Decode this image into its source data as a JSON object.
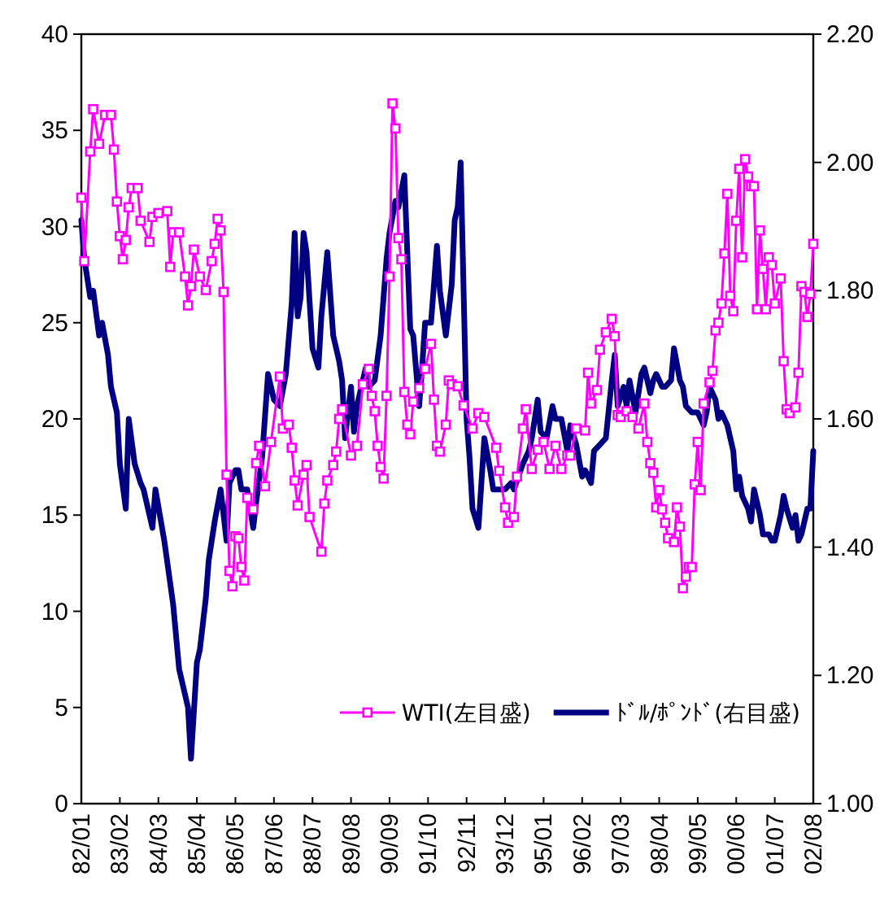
{
  "chart_data": {
    "type": "line",
    "xlim": [
      "1982-01",
      "2002-08"
    ],
    "xticks": [
      {
        "value": "1982-01",
        "label": "82/01"
      },
      {
        "value": "1983-02",
        "label": "83/02"
      },
      {
        "value": "1984-03",
        "label": "84/03"
      },
      {
        "value": "1985-04",
        "label": "85/04"
      },
      {
        "value": "1986-05",
        "label": "86/05"
      },
      {
        "value": "1987-06",
        "label": "87/06"
      },
      {
        "value": "1988-07",
        "label": "88/07"
      },
      {
        "value": "1989-08",
        "label": "89/08"
      },
      {
        "value": "1990-09",
        "label": "90/09"
      },
      {
        "value": "1991-10",
        "label": "91/10"
      },
      {
        "value": "1992-11",
        "label": "92/11"
      },
      {
        "value": "1993-12",
        "label": "93/12"
      },
      {
        "value": "1995-01",
        "label": "95/01"
      },
      {
        "value": "1996-02",
        "label": "96/02"
      },
      {
        "value": "1997-03",
        "label": "97/03"
      },
      {
        "value": "1998-04",
        "label": "98/04"
      },
      {
        "value": "1999-05",
        "label": "99/05"
      },
      {
        "value": "2000-06",
        "label": "00/06"
      },
      {
        "value": "2001-07",
        "label": "01/07"
      },
      {
        "value": "2002-08",
        "label": "02/08"
      }
    ],
    "ylim": [
      0,
      40
    ],
    "yticks": [
      0,
      5,
      10,
      15,
      20,
      25,
      30,
      35,
      40
    ],
    "y2lim": [
      1,
      2.2
    ],
    "y2ticks": [
      {
        "value": 1,
        "label": "1.00"
      },
      {
        "value": 1.2,
        "label": "1.20"
      },
      {
        "value": 1.4,
        "label": "1.40"
      },
      {
        "value": 1.6,
        "label": "1.60"
      },
      {
        "value": 1.8,
        "label": "1.80"
      },
      {
        "value": 2,
        "label": "2.00"
      },
      {
        "value": 2.2,
        "label": "2.20"
      }
    ],
    "legend": "bottom right",
    "series": [
      {
        "name": "WTI(左目盛)",
        "color": "#ff00ff",
        "marker": "square",
        "x": [
          "1982-01",
          "1982-02",
          "1982-04",
          "1982-05",
          "1982-07",
          "1982-09",
          "1982-11",
          "1982-12",
          "1983-01",
          "1983-02",
          "1983-03",
          "1983-04",
          "1983-05",
          "1983-06",
          "1983-08",
          "1983-09",
          "1983-12",
          "1984-01",
          "1984-03",
          "1984-06",
          "1984-07",
          "1984-08",
          "1984-10",
          "1984-12",
          "1985-01",
          "1985-02",
          "1985-03",
          "1985-05",
          "1985-07",
          "1985-09",
          "1985-10",
          "1985-11",
          "1985-12",
          "1986-01",
          "1986-02",
          "1986-03",
          "1986-04",
          "1986-05",
          "1986-06",
          "1986-07",
          "1986-08",
          "1986-09",
          "1986-11",
          "1986-12",
          "1987-01",
          "1987-03",
          "1987-05",
          "1987-08",
          "1987-09",
          "1987-11",
          "1987-12",
          "1988-01",
          "1988-02",
          "1988-04",
          "1988-05",
          "1988-06",
          "1988-10",
          "1988-11",
          "1988-12",
          "1989-02",
          "1989-03",
          "1989-04",
          "1989-05",
          "1989-08",
          "1989-10",
          "1989-12",
          "1990-02",
          "1990-03",
          "1990-04",
          "1990-05",
          "1990-06",
          "1990-07",
          "1990-08",
          "1990-09",
          "1990-10",
          "1990-11",
          "1990-12",
          "1991-01",
          "1991-02",
          "1991-03",
          "1991-04",
          "1991-05",
          "1991-07",
          "1991-09",
          "1991-11",
          "1991-12",
          "1992-01",
          "1992-02",
          "1992-04",
          "1992-05",
          "1992-06",
          "1992-08",
          "1992-10",
          "1993-01",
          "1993-03",
          "1993-05",
          "1993-09",
          "1993-10",
          "1993-12",
          "1994-01",
          "1994-03",
          "1994-04",
          "1994-06",
          "1994-07",
          "1994-09",
          "1994-11",
          "1995-01",
          "1995-03",
          "1995-05",
          "1995-07",
          "1995-09",
          "1995-10",
          "1995-12",
          "1996-03",
          "1996-04",
          "1996-05",
          "1996-07",
          "1996-08",
          "1996-10",
          "1996-12",
          "1997-01",
          "1997-02",
          "1997-03",
          "1997-05",
          "1997-07",
          "1997-09",
          "1997-11",
          "1997-12",
          "1998-01",
          "1998-02",
          "1998-03",
          "1998-04",
          "1998-05",
          "1998-06",
          "1998-07",
          "1998-09",
          "1998-10",
          "1998-11",
          "1998-12",
          "1999-01",
          "1999-02",
          "1999-03",
          "1999-04",
          "1999-05",
          "1999-06",
          "1999-07",
          "1999-09",
          "1999-10",
          "1999-11",
          "1999-12",
          "2000-01",
          "2000-02",
          "2000-03",
          "2000-04",
          "2000-05",
          "2000-06",
          "2000-07",
          "2000-08",
          "2000-09",
          "2000-10",
          "2000-11",
          "2000-12",
          "2001-01",
          "2001-02",
          "2001-03",
          "2001-04",
          "2001-05",
          "2001-06",
          "2001-07",
          "2001-09",
          "2001-10",
          "2001-11",
          "2001-12",
          "2002-02",
          "2002-03",
          "2002-04",
          "2002-05",
          "2002-06",
          "2002-07",
          "2002-08"
        ],
        "values": [
          31.5,
          28.2,
          33.9,
          36.1,
          34.3,
          35.8,
          35.8,
          34.0,
          31.3,
          29.5,
          28.3,
          29.3,
          31.0,
          32.0,
          32.0,
          30.3,
          29.2,
          30.5,
          30.7,
          30.8,
          27.9,
          29.7,
          29.7,
          27.4,
          25.9,
          26.9,
          28.8,
          27.4,
          26.7,
          28.2,
          29.1,
          30.4,
          29.8,
          26.6,
          17.1,
          12.1,
          11.3,
          13.9,
          13.8,
          12.3,
          11.6,
          15.9,
          15.3,
          17.7,
          18.6,
          16.5,
          18.8,
          22.2,
          19.5,
          19.7,
          18.5,
          16.8,
          15.5,
          17.1,
          17.6,
          14.9,
          13.1,
          15.6,
          16.8,
          17.6,
          18.3,
          20.0,
          20.5,
          18.1,
          18.6,
          21.8,
          22.6,
          21.2,
          20.4,
          18.6,
          17.5,
          16.9,
          21.2,
          27.4,
          36.4,
          35.1,
          29.4,
          28.3,
          21.4,
          19.7,
          19.2,
          20.9,
          21.6,
          22.6,
          23.9,
          21.0,
          18.6,
          18.3,
          19.7,
          22.0,
          21.8,
          21.7,
          20.7,
          19.5,
          20.3,
          20.1,
          18.5,
          17.3,
          15.4,
          14.6,
          14.9,
          17.0,
          19.5,
          20.5,
          17.4,
          18.4,
          18.8,
          17.4,
          18.6,
          17.4,
          18.1,
          18.1,
          19.5,
          19.4,
          22.4,
          20.8,
          21.5,
          23.6,
          24.5,
          25.2,
          24.3,
          20.2,
          20.1,
          20.4,
          20.1,
          19.5,
          20.8,
          18.8,
          17.7,
          17.2,
          15.4,
          16.3,
          15.3,
          14.6,
          13.8,
          13.6,
          15.4,
          14.4,
          11.2,
          11.8,
          12.3,
          12.3,
          16.6,
          18.8,
          16.3,
          20.8,
          21.9,
          22.5,
          24.6,
          25.0,
          26.0,
          28.6,
          31.7,
          26.4,
          25.6,
          30.3,
          33.0,
          28.4,
          33.5,
          32.6,
          32.1,
          32.1,
          25.7,
          29.8,
          27.8,
          25.7,
          28.4,
          28.0,
          26.0,
          27.3,
          23.0,
          20.5,
          20.3,
          20.6,
          22.4,
          26.9,
          26.6,
          25.3,
          26.5,
          29.1
        ]
      },
      {
        "name": "ﾄﾞﾙ/ﾎﾟﾝﾄﾞ(右目盛)",
        "color": "#000080",
        "axis": "y2",
        "x": [
          "1982-01",
          "1982-02",
          "1982-04",
          "1982-05",
          "1982-07",
          "1982-08",
          "1982-10",
          "1982-11",
          "1983-01",
          "1983-02",
          "1983-04",
          "1983-05",
          "1983-07",
          "1983-09",
          "1983-10",
          "1984-01",
          "1984-02",
          "1984-05",
          "1984-08",
          "1984-10",
          "1985-01",
          "1985-02",
          "1985-04",
          "1985-05",
          "1985-07",
          "1985-08",
          "1985-10",
          "1985-12",
          "1986-02",
          "1986-03",
          "1986-05",
          "1986-06",
          "1986-07",
          "1986-09",
          "1986-11",
          "1986-12",
          "1987-02",
          "1987-04",
          "1987-06",
          "1987-08",
          "1987-10",
          "1987-12",
          "1988-01",
          "1988-02",
          "1988-03",
          "1988-04",
          "1988-05",
          "1988-07",
          "1988-09",
          "1988-10",
          "1988-12",
          "1989-02",
          "1989-04",
          "1989-05",
          "1989-06",
          "1989-08",
          "1989-09",
          "1989-10",
          "1990-01",
          "1990-02",
          "1990-04",
          "1990-06",
          "1990-08",
          "1990-09",
          "1990-11",
          "1990-12",
          "1991-02",
          "1991-04",
          "1991-05",
          "1991-07",
          "1991-08",
          "1991-09",
          "1991-11",
          "1992-01",
          "1992-02",
          "1992-04",
          "1992-06",
          "1992-07",
          "1992-08",
          "1992-09",
          "1992-11",
          "1992-12",
          "1993-01",
          "1993-03",
          "1993-05",
          "1993-07",
          "1993-08",
          "1993-10",
          "1993-12",
          "1994-02",
          "1994-03",
          "1994-06",
          "1994-08",
          "1994-09",
          "1994-11",
          "1994-12",
          "1995-02",
          "1995-04",
          "1995-05",
          "1995-07",
          "1995-09",
          "1995-10",
          "1995-12",
          "1996-02",
          "1996-03",
          "1996-05",
          "1996-06",
          "1996-08",
          "1996-10",
          "1996-12",
          "1997-01",
          "1997-02",
          "1997-04",
          "1997-05",
          "1997-06",
          "1997-08",
          "1997-09",
          "1997-10",
          "1997-11",
          "1998-01",
          "1998-02",
          "1998-03",
          "1998-05",
          "1998-06",
          "1998-08",
          "1998-09",
          "1998-11",
          "1998-12",
          "1999-01",
          "1999-03",
          "1999-05",
          "1999-07",
          "1999-08",
          "1999-09",
          "1999-11",
          "1999-12",
          "2000-01",
          "2000-03",
          "2000-05",
          "2000-06",
          "2000-07",
          "2000-08",
          "2000-10",
          "2000-11",
          "2000-12",
          "2001-02",
          "2001-03",
          "2001-05",
          "2001-06",
          "2001-07",
          "2001-09",
          "2001-10",
          "2001-11",
          "2002-01",
          "2002-02",
          "2002-03",
          "2002-04",
          "2002-06",
          "2002-07",
          "2002-08"
        ],
        "values": [
          1.91,
          1.85,
          1.79,
          1.8,
          1.73,
          1.75,
          1.7,
          1.65,
          1.61,
          1.53,
          1.46,
          1.6,
          1.53,
          1.5,
          1.49,
          1.43,
          1.49,
          1.41,
          1.31,
          1.21,
          1.15,
          1.07,
          1.22,
          1.24,
          1.32,
          1.38,
          1.44,
          1.49,
          1.41,
          1.5,
          1.52,
          1.52,
          1.49,
          1.49,
          1.43,
          1.47,
          1.54,
          1.67,
          1.63,
          1.62,
          1.67,
          1.78,
          1.89,
          1.76,
          1.79,
          1.89,
          1.86,
          1.71,
          1.68,
          1.76,
          1.86,
          1.73,
          1.69,
          1.66,
          1.57,
          1.65,
          1.58,
          1.62,
          1.68,
          1.65,
          1.66,
          1.73,
          1.85,
          1.89,
          1.94,
          1.93,
          1.98,
          1.74,
          1.73,
          1.62,
          1.68,
          1.75,
          1.75,
          1.87,
          1.8,
          1.73,
          1.81,
          1.91,
          1.93,
          2.0,
          1.6,
          1.54,
          1.46,
          1.43,
          1.57,
          1.52,
          1.49,
          1.49,
          1.49,
          1.5,
          1.49,
          1.53,
          1.55,
          1.57,
          1.63,
          1.58,
          1.57,
          1.62,
          1.6,
          1.6,
          1.55,
          1.59,
          1.56,
          1.51,
          1.52,
          1.5,
          1.55,
          1.56,
          1.57,
          1.66,
          1.7,
          1.62,
          1.65,
          1.62,
          1.66,
          1.61,
          1.64,
          1.67,
          1.68,
          1.64,
          1.66,
          1.67,
          1.65,
          1.65,
          1.66,
          1.71,
          1.66,
          1.65,
          1.62,
          1.61,
          1.61,
          1.59,
          1.61,
          1.65,
          1.63,
          1.6,
          1.61,
          1.59,
          1.55,
          1.49,
          1.51,
          1.48,
          1.46,
          1.44,
          1.49,
          1.45,
          1.42,
          1.42,
          1.41,
          1.41,
          1.45,
          1.48,
          1.46,
          1.43,
          1.45,
          1.41,
          1.42,
          1.46,
          1.46,
          1.55
        ]
      }
    ]
  }
}
